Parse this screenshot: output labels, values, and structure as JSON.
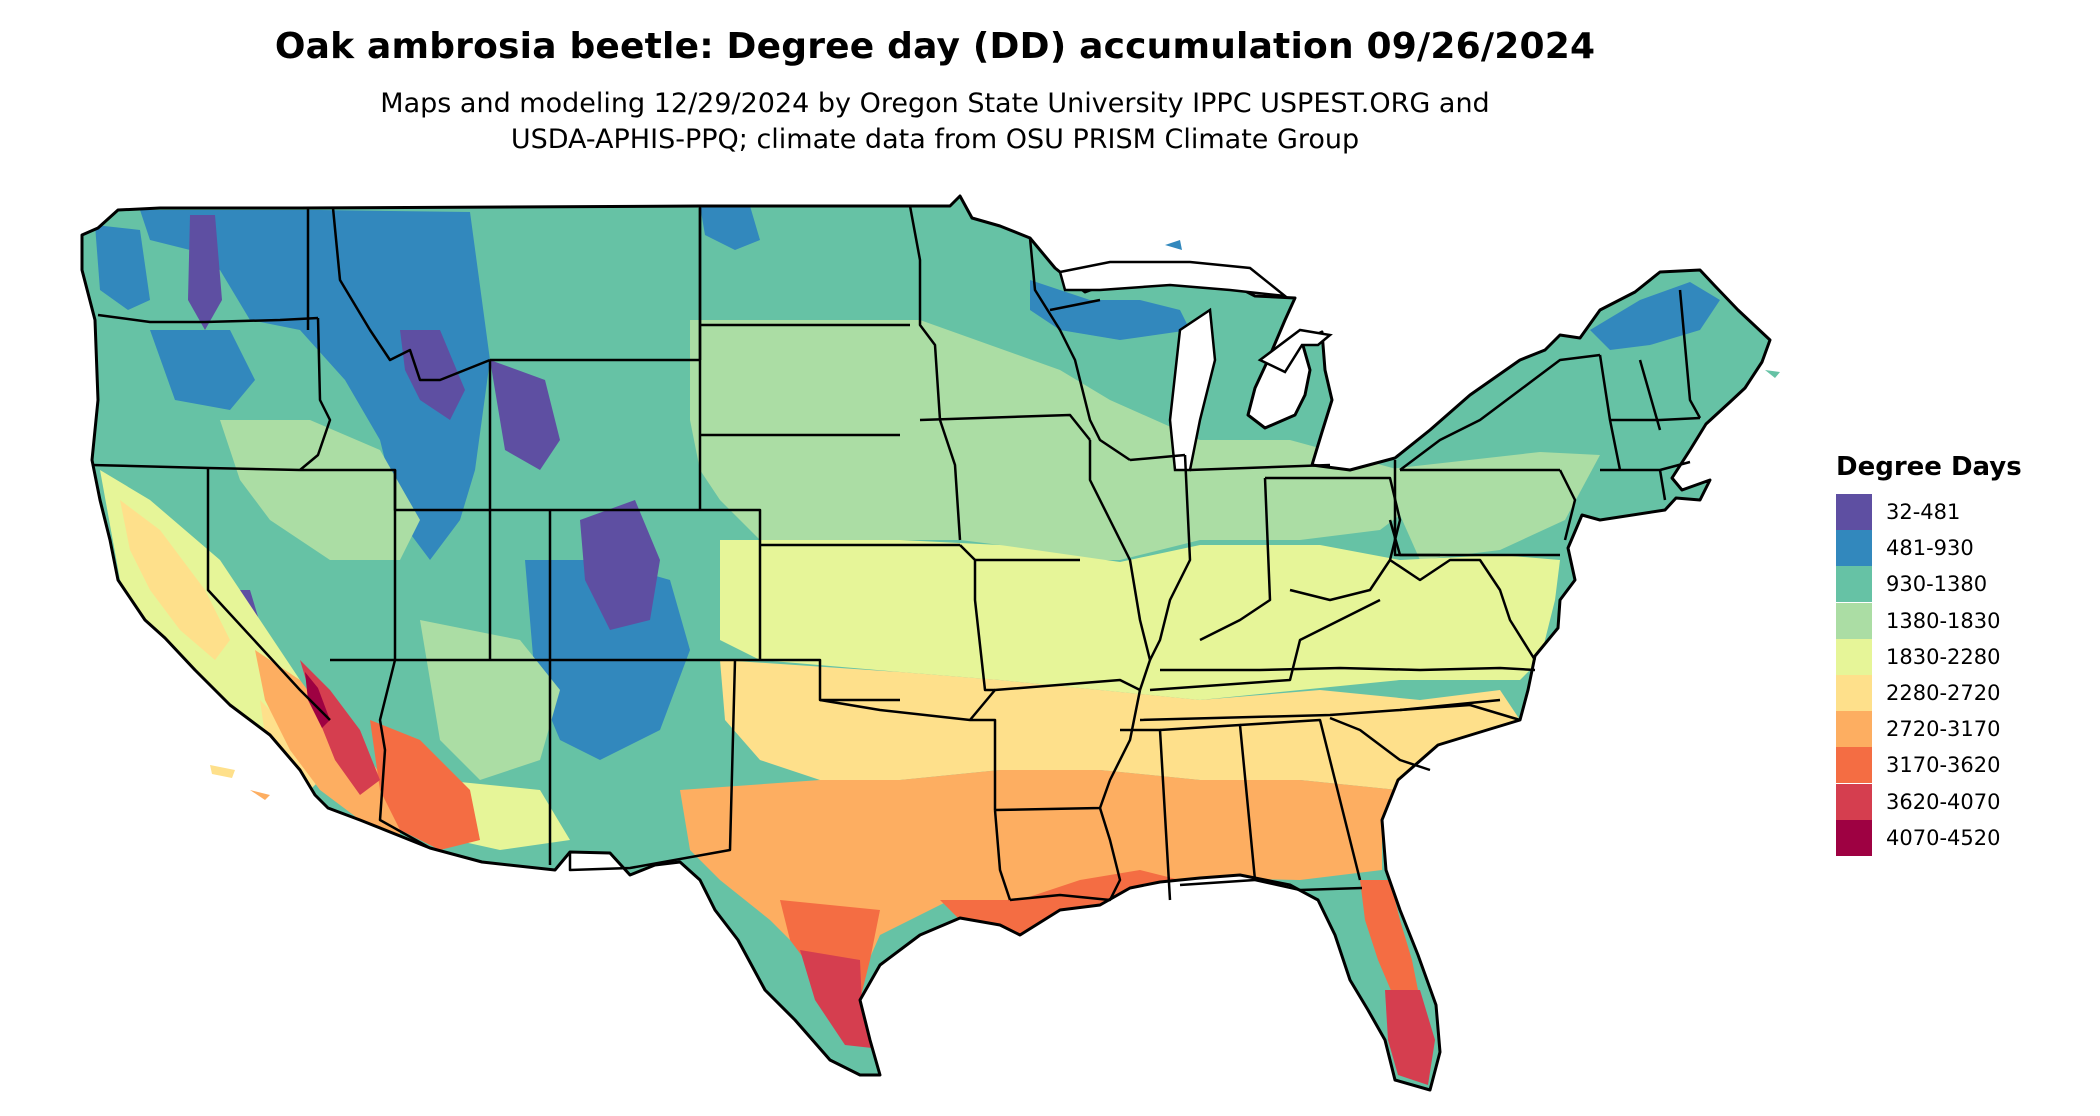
{
  "header": {
    "title": "Oak ambrosia beetle: Degree day (DD) accumulation 09/26/2024",
    "subtitle_line1": "Maps and modeling 12/29/2024 by Oregon State University IPPC USPEST.ORG and",
    "subtitle_line2": "USDA-APHIS-PPQ; climate data from OSU PRISM Climate Group"
  },
  "legend": {
    "title": "Degree Days",
    "items": [
      {
        "label": "32-481",
        "color": "#5e4fa2"
      },
      {
        "label": "481-930",
        "color": "#3288bd"
      },
      {
        "label": "930-1380",
        "color": "#66c2a5"
      },
      {
        "label": "1380-1830",
        "color": "#abdda4"
      },
      {
        "label": "1830-2280",
        "color": "#e6f598"
      },
      {
        "label": "2280-2720",
        "color": "#fee08b"
      },
      {
        "label": "2720-3170",
        "color": "#fdae61"
      },
      {
        "label": "3170-3620",
        "color": "#f46d43"
      },
      {
        "label": "3620-4070",
        "color": "#d53e4f"
      },
      {
        "label": "4070-4520",
        "color": "#9e0142"
      }
    ]
  }
}
